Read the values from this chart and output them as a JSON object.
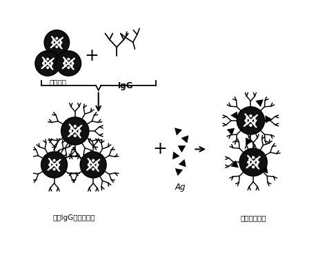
{
  "bg_color": "#ffffff",
  "text_color": "#000000",
  "label_staphylococcus": "葡萄球菌",
  "label_IgG": "IgG",
  "label_Ag": "Ag",
  "label_bound": "结合IgG的葡萄球菌",
  "label_agglutination": "葡萄球菌凝集",
  "cell_face": "#111111",
  "line_color": "#000000",
  "figsize": [
    4.74,
    3.8
  ],
  "dpi": 100
}
